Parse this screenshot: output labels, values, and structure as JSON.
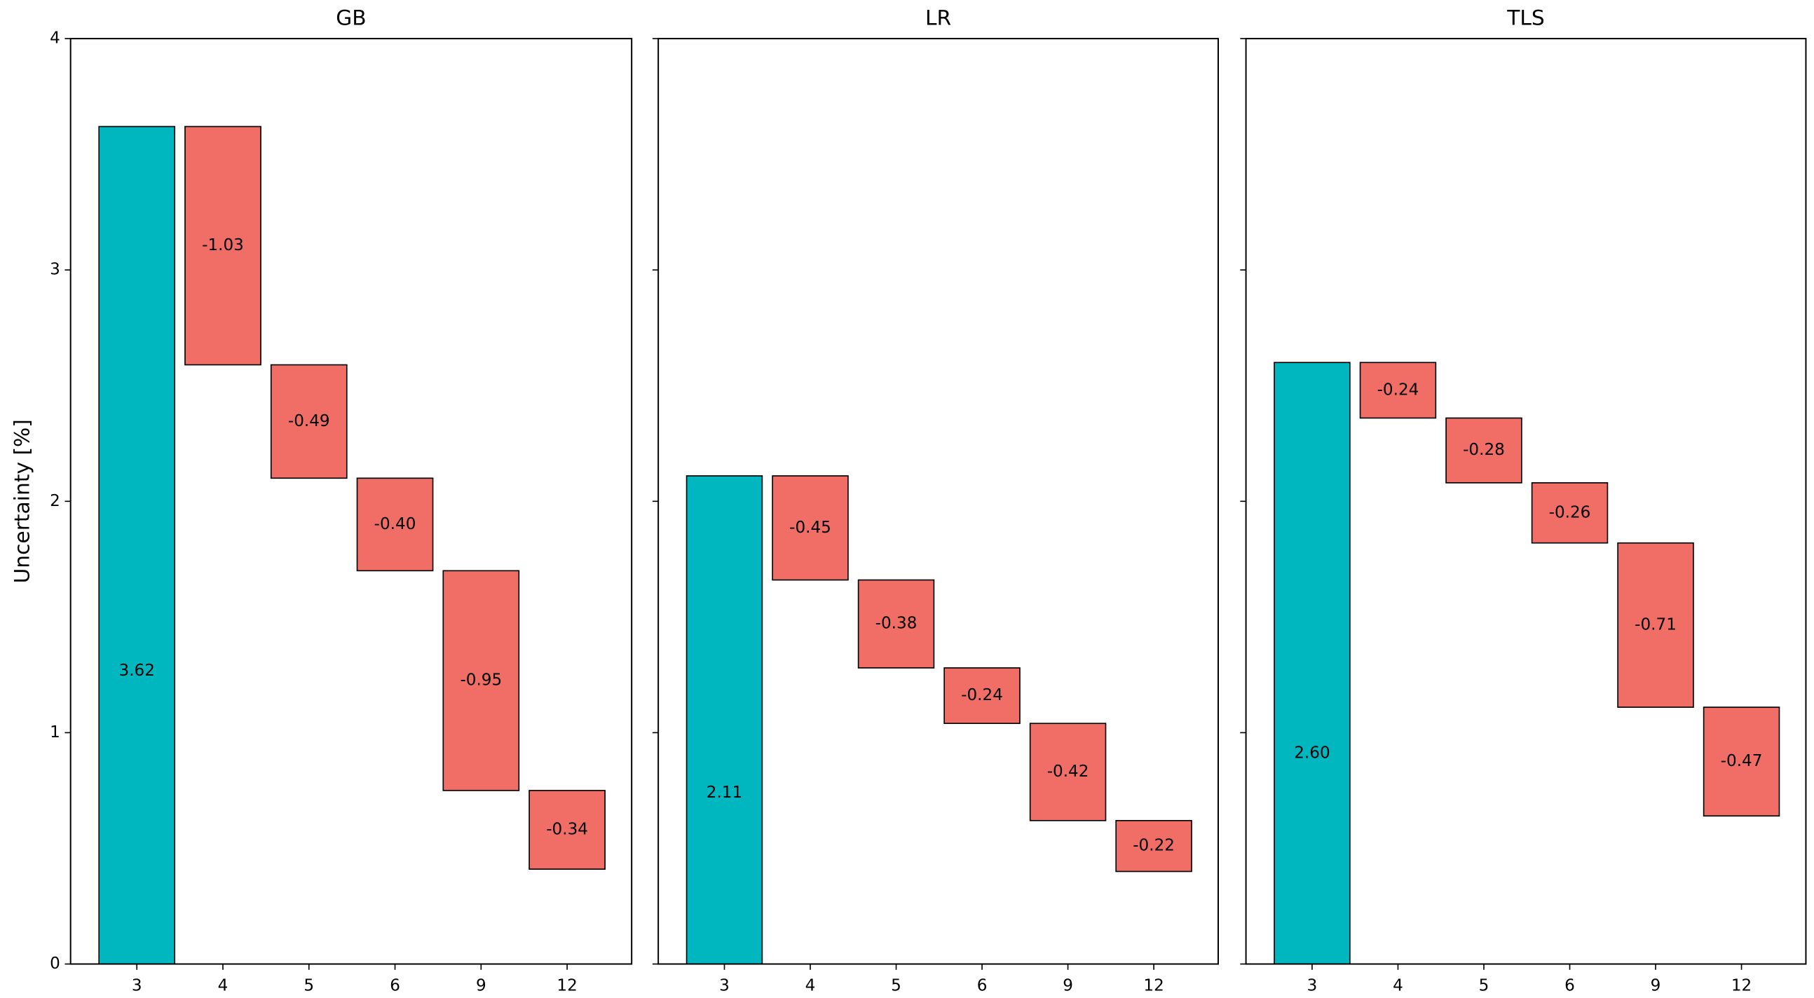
{
  "chart_data": [
    {
      "type": "waterfall",
      "title": "GB",
      "ylabel": "Uncertainty [%]",
      "categories": [
        "3",
        "4",
        "5",
        "6",
        "9",
        "12"
      ],
      "values": [
        3.62,
        -1.03,
        -0.49,
        -0.4,
        -0.95,
        -0.34
      ],
      "value_labels": [
        "3.62",
        "-1.03",
        "-0.49",
        "-0.40",
        "-0.95",
        "-0.34"
      ],
      "total_color": "#00b7c0",
      "decrease_color": "#f06e65",
      "ylim": [
        0,
        4
      ],
      "yticks": [
        0,
        1,
        2,
        3,
        4
      ]
    },
    {
      "type": "waterfall",
      "title": "LR",
      "categories": [
        "3",
        "4",
        "5",
        "6",
        "9",
        "12"
      ],
      "values": [
        2.11,
        -0.45,
        -0.38,
        -0.24,
        -0.42,
        -0.22
      ],
      "value_labels": [
        "2.11",
        "-0.45",
        "-0.38",
        "-0.24",
        "-0.42",
        "-0.22"
      ],
      "total_color": "#00b7c0",
      "decrease_color": "#f06e65",
      "ylim": [
        0,
        4
      ],
      "yticks": [
        0,
        1,
        2,
        3,
        4
      ]
    },
    {
      "type": "waterfall",
      "title": "TLS",
      "categories": [
        "3",
        "4",
        "5",
        "6",
        "9",
        "12"
      ],
      "values": [
        2.6,
        -0.24,
        -0.28,
        -0.26,
        -0.71,
        -0.47
      ],
      "value_labels": [
        "2.60",
        "-0.24",
        "-0.28",
        "-0.26",
        "-0.71",
        "-0.47"
      ],
      "total_color": "#00b7c0",
      "decrease_color": "#f06e65",
      "ylim": [
        0,
        4
      ],
      "yticks": [
        0,
        1,
        2,
        3,
        4
      ]
    }
  ]
}
